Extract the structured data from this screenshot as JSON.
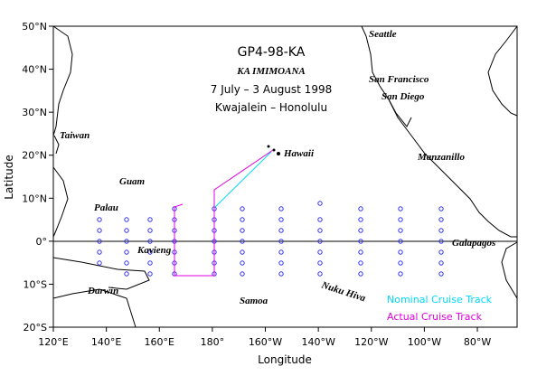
{
  "map": {
    "title": "GP4-98-KA",
    "ship": "KA IMIMOANA",
    "dates": "7 July – 3 August 1998",
    "route": "Kwajalein – Honolulu",
    "x_label": "Longitude",
    "y_label": "Latitude",
    "xlim": [
      120,
      295
    ],
    "ylim": [
      -20,
      50
    ],
    "xticks": [
      {
        "value": 120,
        "label": "120°E"
      },
      {
        "value": 140,
        "label": "140°E"
      },
      {
        "value": 160,
        "label": "160°E"
      },
      {
        "value": 180,
        "label": "180°"
      },
      {
        "value": 200,
        "label": "160°W"
      },
      {
        "value": 220,
        "label": "140°W"
      },
      {
        "value": 240,
        "label": "120°W"
      },
      {
        "value": 260,
        "label": "100°W"
      },
      {
        "value": 280,
        "label": "80°W"
      }
    ],
    "yticks": [
      {
        "value": -20,
        "label": "20°S"
      },
      {
        "value": -10,
        "label": "10°S"
      },
      {
        "value": 0,
        "label": "0°"
      },
      {
        "value": 10,
        "label": "10°N"
      },
      {
        "value": 20,
        "label": "20°N"
      },
      {
        "value": 30,
        "label": "30°N"
      },
      {
        "value": 40,
        "label": "40°N"
      },
      {
        "value": 50,
        "label": "50°N"
      }
    ],
    "places": [
      "Seattle",
      "San Francisco",
      "San Diego",
      "Taiwan",
      "Hawaii",
      "Manzanillo",
      "Guam",
      "Palau",
      "Kavieng",
      "Galapagos",
      "Darwin",
      "Nuku Hiva",
      "Samoa"
    ],
    "legend": {
      "nominal": "Nominal Cruise Track",
      "actual": "Actual Cruise Track"
    }
  }
}
